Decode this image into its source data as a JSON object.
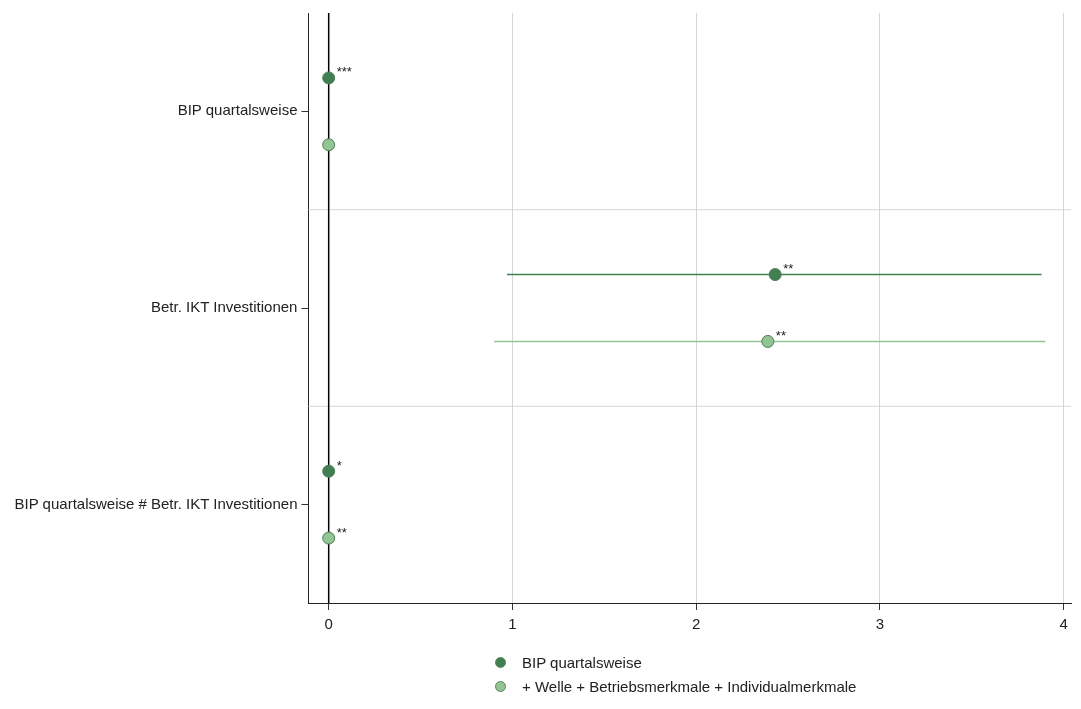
{
  "chart_data": {
    "type": "scatter",
    "orientation": "horizontal",
    "categories": [
      "BIP quartalsweise",
      "Betr. IKT Investitionen",
      "BIP quartalsweise # Betr. IKT Investitionen"
    ],
    "series": [
      {
        "name": "+ Welle + Betriebsmerkmale + Individualmerkmale",
        "color": "#93c493",
        "values": [
          0,
          2.39,
          0
        ],
        "errors": [
          null,
          [
            0.9,
            3.9
          ],
          null
        ],
        "value_labels": [
          null,
          "**",
          "**"
        ]
      },
      {
        "name": "BIP quartalsweise",
        "color": "#3f7f52",
        "values": [
          0,
          2.43,
          0
        ],
        "errors": [
          null,
          [
            0.97,
            3.88
          ],
          null
        ],
        "value_labels": [
          "***",
          "**",
          "*"
        ]
      }
    ],
    "xlim": [
      -0.11,
      4.04
    ],
    "xticks": [
      0,
      1,
      2,
      3,
      4
    ],
    "grid": true,
    "legend": "bottom",
    "marker": "circle",
    "ref_lines": [
      {
        "axis": "x",
        "value": 0,
        "color": "#000000"
      }
    ]
  }
}
